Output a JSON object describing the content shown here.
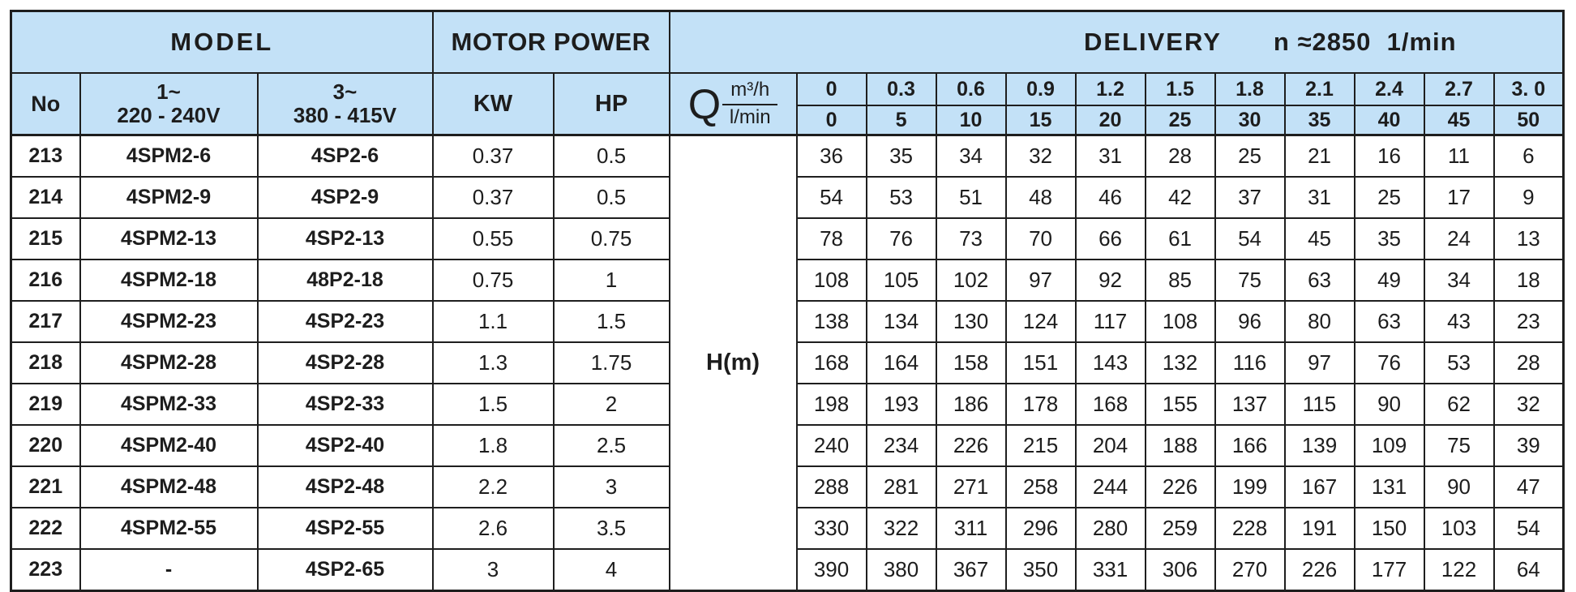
{
  "colors": {
    "header_bg": "#C3E1F7",
    "border": "#1E1E1E",
    "text": "#1D1D1D"
  },
  "table": {
    "header": {
      "model": "MODEL",
      "motor_power": "MOTOR POWER",
      "delivery": "DELIVERY",
      "delivery_speed": "n ≈2850  1/min",
      "no": "No",
      "single_phase_line1": "1~",
      "single_phase_line2": "220 - 240V",
      "three_phase_line1": "3~",
      "three_phase_line2": "380 - 415V",
      "kw": "KW",
      "hp": "HP",
      "q_symbol": "Q",
      "q_unit_top": "m³/h",
      "q_unit_bottom": "l/min",
      "head_label": "H(m)",
      "flow_m3h": [
        "0",
        "0.3",
        "0.6",
        "0.9",
        "1.2",
        "1.5",
        "1.8",
        "2.1",
        "2.4",
        "2.7",
        "3. 0"
      ],
      "flow_lmin": [
        "0",
        "5",
        "10",
        "15",
        "20",
        "25",
        "30",
        "35",
        "40",
        "45",
        "50"
      ]
    },
    "rows": [
      {
        "no": "213",
        "model_single": "4SPM2-6",
        "model_three": "4SP2-6",
        "kw": "0.37",
        "hp": "0.5",
        "head_m": [
          "36",
          "35",
          "34",
          "32",
          "31",
          "28",
          "25",
          "21",
          "16",
          "11",
          "6"
        ]
      },
      {
        "no": "214",
        "model_single": "4SPM2-9",
        "model_three": "4SP2-9",
        "kw": "0.37",
        "hp": "0.5",
        "head_m": [
          "54",
          "53",
          "51",
          "48",
          "46",
          "42",
          "37",
          "31",
          "25",
          "17",
          "9"
        ]
      },
      {
        "no": "215",
        "model_single": "4SPM2-13",
        "model_three": "4SP2-13",
        "kw": "0.55",
        "hp": "0.75",
        "head_m": [
          "78",
          "76",
          "73",
          "70",
          "66",
          "61",
          "54",
          "45",
          "35",
          "24",
          "13"
        ]
      },
      {
        "no": "216",
        "model_single": "4SPM2-18",
        "model_three": "48P2-18",
        "kw": "0.75",
        "hp": "1",
        "head_m": [
          "108",
          "105",
          "102",
          "97",
          "92",
          "85",
          "75",
          "63",
          "49",
          "34",
          "18"
        ]
      },
      {
        "no": "217",
        "model_single": "4SPM2-23",
        "model_three": "4SP2-23",
        "kw": "1.1",
        "hp": "1.5",
        "head_m": [
          "138",
          "134",
          "130",
          "124",
          "117",
          "108",
          "96",
          "80",
          "63",
          "43",
          "23"
        ]
      },
      {
        "no": "218",
        "model_single": "4SPM2-28",
        "model_three": "4SP2-28",
        "kw": "1.3",
        "hp": "1.75",
        "head_m": [
          "168",
          "164",
          "158",
          "151",
          "143",
          "132",
          "116",
          "97",
          "76",
          "53",
          "28"
        ]
      },
      {
        "no": "219",
        "model_single": "4SPM2-33",
        "model_three": "4SP2-33",
        "kw": "1.5",
        "hp": "2",
        "head_m": [
          "198",
          "193",
          "186",
          "178",
          "168",
          "155",
          "137",
          "115",
          "90",
          "62",
          "32"
        ]
      },
      {
        "no": "220",
        "model_single": "4SPM2-40",
        "model_three": "4SP2-40",
        "kw": "1.8",
        "hp": "2.5",
        "head_m": [
          "240",
          "234",
          "226",
          "215",
          "204",
          "188",
          "166",
          "139",
          "109",
          "75",
          "39"
        ]
      },
      {
        "no": "221",
        "model_single": "4SPM2-48",
        "model_three": "4SP2-48",
        "kw": "2.2",
        "hp": "3",
        "head_m": [
          "288",
          "281",
          "271",
          "258",
          "244",
          "226",
          "199",
          "167",
          "131",
          "90",
          "47"
        ]
      },
      {
        "no": "222",
        "model_single": "4SPM2-55",
        "model_three": "4SP2-55",
        "kw": "2.6",
        "hp": "3.5",
        "head_m": [
          "330",
          "322",
          "311",
          "296",
          "280",
          "259",
          "228",
          "191",
          "150",
          "103",
          "54"
        ]
      },
      {
        "no": "223",
        "model_single": "-",
        "model_three": "4SP2-65",
        "kw": "3",
        "hp": "4",
        "head_m": [
          "390",
          "380",
          "367",
          "350",
          "331",
          "306",
          "270",
          "226",
          "177",
          "122",
          "64"
        ]
      }
    ]
  }
}
